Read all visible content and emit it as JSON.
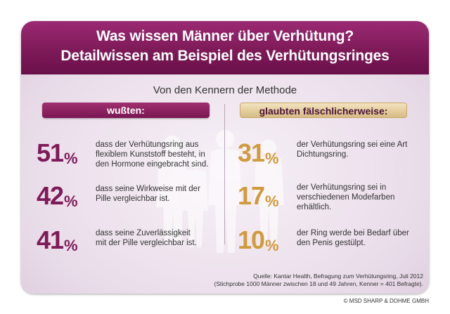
{
  "header": {
    "line1": "Was wissen Männer über Verhütung?",
    "line2": "Detailwissen am Beispiel des Verhütungsringes"
  },
  "subtitle": "Von den Kennern der Methode",
  "chart_data": {
    "type": "table",
    "groups": [
      {
        "label": "wußten:",
        "items": [
          {
            "value": 51,
            "unit": "%",
            "text": "dass der Verhütungsring aus flexiblem Kunststoff besteht, in den Hormone eingebracht sind."
          },
          {
            "value": 42,
            "unit": "%",
            "text": "dass seine Wirkweise mit der Pille vergleichbar ist."
          },
          {
            "value": 41,
            "unit": "%",
            "text": "dass seine Zuverlässigkeit mit der Pille vergleichbar ist."
          }
        ]
      },
      {
        "label": "glaubten fälschlicherweise:",
        "items": [
          {
            "value": 31,
            "unit": "%",
            "text": "der Verhütungsring sei eine Art Dichtungsring."
          },
          {
            "value": 17,
            "unit": "%",
            "text": "der Verhütungsring sei in verschiedenen Modefarben erhältlich."
          },
          {
            "value": 10,
            "unit": "%",
            "text": "der Ring werde bei Bedarf über den Penis gestülpt."
          }
        ]
      }
    ]
  },
  "source": {
    "line1": "Quelle: Kantar Health, Befragung zum Verhütungsring, Juli 2012",
    "line2": "(Stichprobe 1000 Männer zwischen 18 und 49 Jahren, Kenner = 401 Befragte)."
  },
  "copyright": "© MSD SHARP & DOHME GMBH",
  "colors": {
    "header": "#7e1a58",
    "left_accent": "#7e1a58",
    "right_accent": "#d19a3c",
    "right_button": "#e8d2a2"
  }
}
